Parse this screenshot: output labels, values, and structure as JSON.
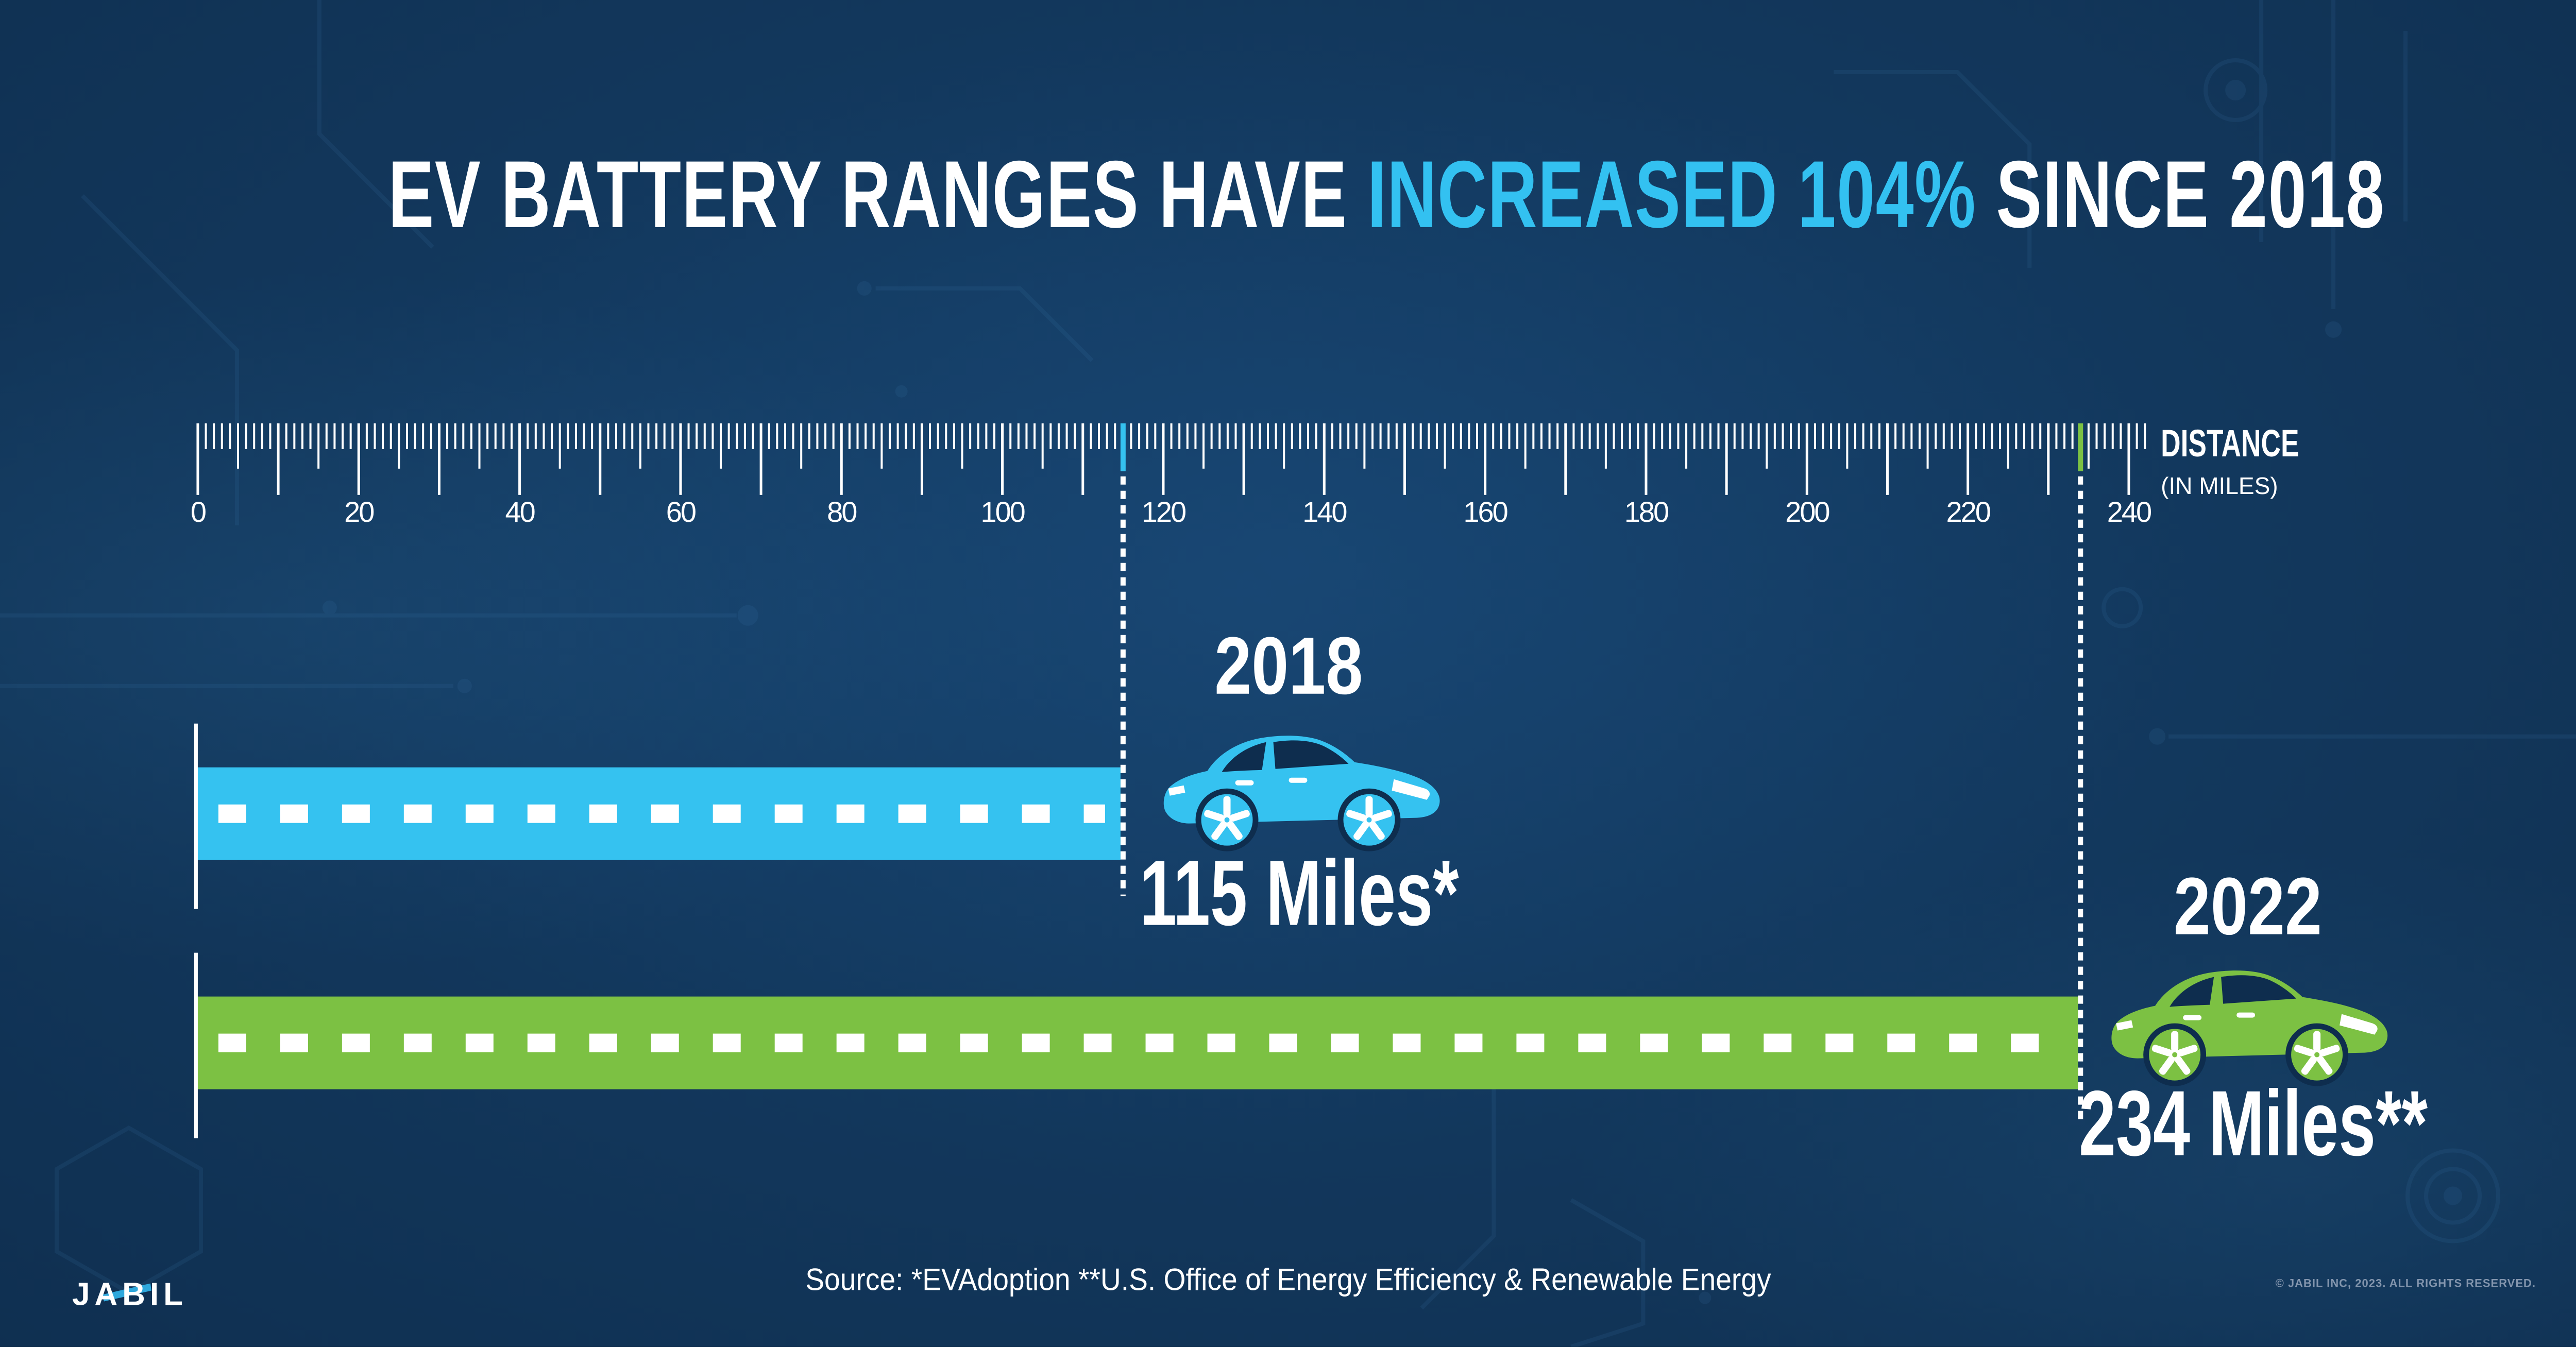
{
  "title": {
    "pre": "EV BATTERY RANGES HAVE ",
    "highlight": "INCREASED 104%",
    "post": " SINCE 2018"
  },
  "axis": {
    "title": "DISTANCE",
    "subtitle": "(IN MILES)",
    "min": 0,
    "max": 240,
    "overshoot": 2,
    "minor_step": 1,
    "medium_step": 5,
    "major_step": 10,
    "label_step": 20
  },
  "series": [
    {
      "year": "2018",
      "value": 115,
      "label": "115 Miles*",
      "color": "#35C2F0"
    },
    {
      "year": "2022",
      "value": 234,
      "label": "234 Miles**",
      "color": "#7CC143"
    }
  ],
  "chart_data": {
    "type": "bar",
    "orientation": "horizontal",
    "title": "EV BATTERY RANGES HAVE INCREASED 104% SINCE 2018",
    "categories": [
      "2018",
      "2022"
    ],
    "values": [
      115,
      234
    ],
    "value_labels": [
      "115 Miles*",
      "234 Miles**"
    ],
    "xlabel": "DISTANCE (IN MILES)",
    "xlim": [
      0,
      240
    ],
    "x_ticks_labeled": [
      0,
      20,
      40,
      60,
      80,
      100,
      120,
      140,
      160,
      180,
      200,
      220,
      240
    ],
    "minor_tick_every": 1,
    "increase_pct": 104,
    "series_colors": [
      "#35C2F0",
      "#7CC143"
    ],
    "grid": false,
    "legend": false
  },
  "footer": {
    "brand": "JABIL",
    "source": "Source: *EVAdoption  **U.S. Office of Energy Efficiency & Renewable Energy",
    "copyright": "© JABIL INC, 2023. ALL RIGHTS RESERVED."
  },
  "colors": {
    "background": "#0E2D4E",
    "accent": "#33C1F1",
    "bar_blue": "#35C2F0",
    "bar_green": "#7CC143",
    "white": "#FFFFFF",
    "muted": "#8496AE"
  }
}
